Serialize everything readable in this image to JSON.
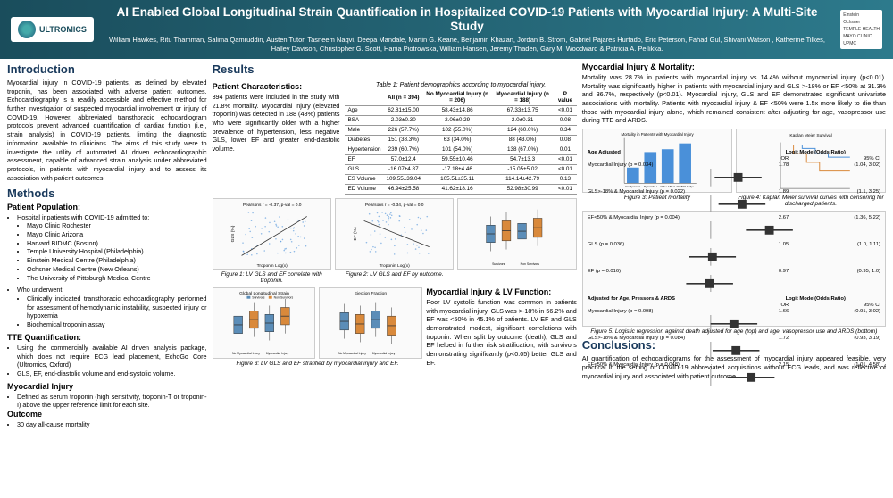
{
  "header": {
    "logo": "ULTROMICS",
    "title": "AI Enabled Global Longitudinal Strain Quantification in Hospitalized COVID-19 Patients with Myocardial Injury: A Multi-Site Study",
    "authors": "William Hawkes, Ritu Thamman, Salima Qamruddin, Austen Tutor, Tasneem Naqvi, Deepa Mandale, Martin G. Keane, Benjamin Khazan, Jordan B. Strom, Gabriel Pajares Hurtado, Eric Peterson, Fahad Gul, Shivani Watson , Katherine Tilkes, Halley Davison, Christopher G. Scott, Hania Piotrowska, William Hansen, Jeremy Thaden, Gary M. Woodward & Patricia A. Pellikka.",
    "sponsors": [
      "Einstein",
      "Ochsner",
      "TEMPLE HEALTH",
      "MAYO CLINIC",
      "UPMC"
    ]
  },
  "intro": {
    "heading": "Introduction",
    "text": "Myocardial injury in COVID-19 patients, as defined by elevated troponin, has been associated with adverse patient outcomes. Echocardiography is a readily accessible and effective method for further investigation of suspected myocardial involvement or injury of COVID-19. However, abbreviated transthoracic echocardiogram protocols prevent advanced quantification of cardiac function (i.e., strain analysis) in COVID-19 patients, limiting the diagnostic information available to clinicians. The aims of this study were to investigate the utility of automated AI driven echocardiographic assessment, capable of advanced strain analysis under abbreviated protocols, in patients with myocardial injury and to assess its association with patient outcomes."
  },
  "methods": {
    "heading": "Methods",
    "pp_head": "Patient Population:",
    "pp_intro": "Hospital inpatients with COVID-19 admitted to:",
    "sites": [
      "Mayo Clinic Rochester",
      "Mayo Clinic Arizona",
      "Harvard BIDMC (Boston)",
      "Temple University Hospital (Philadelphia)",
      "Einstein Medical Centre (Philadelphia)",
      "Ochsner Medical Centre (New Orleans)",
      "The University of Pittsburgh Medical Centre"
    ],
    "who_head": "Who underwent:",
    "who_items": [
      "Clinically indicated transthoracic echocardiography performed for assessment of hemodynamic instability, suspected injury or hypoxemia",
      "Biochemical troponin assay"
    ],
    "tte_head": "TTE Quantification:",
    "tte_items": [
      "Using the commercially available AI driven analysis package, which does not require ECG lead placement, EchoGo Core (Ultromics, Oxford)",
      "GLS, EF, end-diastolic volume and end-systolic volume."
    ],
    "mi_head": "Myocardial Injury",
    "mi_items": [
      "Defined as serum troponin (high sensitivity, troponin-T or troponin-I) above the upper reference limit for each site."
    ],
    "out_head": "Outcome",
    "out_items": [
      "30 day all-cause mortality"
    ]
  },
  "results": {
    "heading": "Results",
    "pc_head": "Patient Characteristics:",
    "pc_text": "394 patients were included in the study with 21.8% mortality. Myocardial injury (elevated troponin) was detected in 188 (48%) patients who were significantly older with a higher prevalence of hypertension, less negative GLS, lower EF and greater end-diastolic volume.",
    "table1_title": "Table 1: Patient demographics according to myocardial injury.",
    "table1": {
      "cols": [
        "",
        "All (n = 394)",
        "No Myocardial Injury (n = 206)",
        "Myocardial Injury (n = 188)",
        "P value"
      ],
      "rows": [
        [
          "Age",
          "62.81±15.00",
          "58.43±14.86",
          "67.33±13.75",
          "<0.01"
        ],
        [
          "BSA",
          "2.03±0.30",
          "2.06±0.29",
          "2.0±0.31",
          "0.08"
        ],
        [
          "Male",
          "226 (57.7%)",
          "102 (55.0%)",
          "124 (60.0%)",
          "0.34"
        ],
        [
          "Diabetes",
          "151 (38.3%)",
          "63 (34.0%)",
          "88 (43.0%)",
          "0.08"
        ],
        [
          "Hypertension",
          "239 (60.7%)",
          "101 (54.0%)",
          "138 (67.0%)",
          "0.01"
        ],
        [
          "EF",
          "57.0±12.4",
          "59.55±10.46",
          "54.7±13.3",
          "<0.01"
        ],
        [
          "GLS",
          "-16.07±4.87",
          "-17.18±4.46",
          "-15.05±5.02",
          "<0.01"
        ],
        [
          "ES Volume",
          "109.55±39.04",
          "105.51±35.11",
          "114.14±42.79",
          "0.13"
        ],
        [
          "ED Volume",
          "46.94±25.58",
          "41.62±18.16",
          "52.98±30.99",
          "<0.01"
        ]
      ]
    },
    "fig1_cap": "Figure 1: LV GLS and EF correlate with troponin.",
    "fig2_cap": "Figure 2: LV GLS and EF by outcome.",
    "fig3_cap": "Figure 3: LV GLS and EF stratified by myocardial injury and EF.",
    "scatter": {
      "left_label": "Pearsons r = -0.37, p-val = 0.0",
      "right_label": "Pearsons r = -0.34, p-val = 0.0",
      "x_label": "Troponin Log(x)",
      "y1": "GLS (%)",
      "y2": "EF (%)",
      "point_color": "#4a90d9",
      "line_color": "#333333"
    },
    "box2": {
      "groups": [
        "Survivors",
        "Non Survivors",
        "Survivors",
        "Non Survivors"
      ],
      "left_title": "",
      "colors": [
        "#5b8db8",
        "#d9893b"
      ]
    },
    "box3": {
      "legend": [
        "Survivors",
        "Non-Survivors"
      ],
      "left_title": "Global Longitudinal Strain",
      "right_title": "Ejection Fraction",
      "xcat": [
        "No Myocardial Injury",
        "Myocardial Injury"
      ],
      "colors": [
        "#5b8db8",
        "#d9893b"
      ]
    },
    "lv_head": "Myocardial Injury & LV Function:",
    "lv_text": "Poor LV systolic function was common in patients with myocardial injury. GLS was >-18% in 56.2% and EF was <50% in 45.1% of patients. LV EF and GLS demonstrated modest, significant correlations with troponin. When split by outcome (death), GLS and EF helped in further risk stratification, with survivors demonstrating significantly (p<0.05) better GLS and EF."
  },
  "col3": {
    "mm_head": "Myocardial Injury & Mortality:",
    "mm_text": "Mortality was 28.7% in patients with myocardial injury vs 14.4% without myocardial injury (p<0.01). Mortality was significantly higher in patients with myocardial injury and GLS >-18% or EF <50% at 31.3% and 36.7%, respectively (p<0.01). Myocardial injury, GLS and EF demonstrated significant univariate associations with mortality. Patients with myocardial injury & EF <50% were 1.5x more likely to die than those with myocardial injury alone, which remained consistent after adjusting for age, vasopressor use during TTE and ARDS.",
    "fig3b_cap": "Figure 3: Patient mortality",
    "fig4_cap": "Figure 4: Kaplan Meier survival curves with censoring for discharged patients.",
    "fig5_cap": "Figure 5: Logistic regression against death adjusted for age (top) and age, vasopressor use and ARDS (bottom)",
    "bar": {
      "title": "Mortality in Patients with Myocardial Injury",
      "cats": [
        "No Myocardial Injury",
        "Myocardial Injury",
        "GLS >-18% & Myocardial Injury",
        "EF<50% & Myocardial Injury"
      ],
      "vals": [
        14.4,
        28.7,
        31.3,
        36.7
      ],
      "color": "#4a90d9",
      "ymax": 40
    },
    "km": {
      "title": "Kaplan Meier Survival",
      "x": "Time",
      "y": "Survival"
    },
    "forest": {
      "sections": [
        {
          "head": "Age Adjusted",
          "label_head": "Logit Model(Odds Ratio)",
          "col_or": "OR",
          "col_ci": "95% CI",
          "rows": [
            [
              "Myocardial Injury (p = 0.034)",
              "1.78",
              "(1.04, 3.02)"
            ],
            [
              "GLS>-18% & Myocardial Injury (p = 0.022)",
              "1.89",
              "(1.1, 3.25)"
            ],
            [
              "EF<50% & Myocardial Injury (p = 0.004)",
              "2.67",
              "(1.36, 5.22)"
            ],
            [
              "GLS (p = 0.036)",
              "1.05",
              "(1.0, 1.11)"
            ],
            [
              "EF (p = 0.016)",
              "0.97",
              "(0.95, 1.0)"
            ]
          ]
        },
        {
          "head": "Adjusted for Age, Pressors & ARDS",
          "label_head": "Logit Model(Odds Ratio)",
          "col_or": "OR",
          "col_ci": "95% CI",
          "rows": [
            [
              "Myocardial Injury (p = 0.098)",
              "1.66",
              "(0.91, 3.02)"
            ],
            [
              "GLS>-18% & Myocardial Injury (p = 0.084)",
              "1.72",
              "(0.93, 3.19)"
            ],
            [
              "EF<50% & Myocardial Injury (p = 0.048)",
              "2.15",
              "(1.01, 4.58)"
            ]
          ]
        }
      ]
    },
    "conc_head": "Conclusions:",
    "conc_text": "AI quantification of echocardiograms for the assessment of myocardial injury appeared feasible, very practical in the setting of COVID-19 abbreviated acquisitions without ECG leads, and was reflective of myocardial injury and associated with patient outcome."
  }
}
